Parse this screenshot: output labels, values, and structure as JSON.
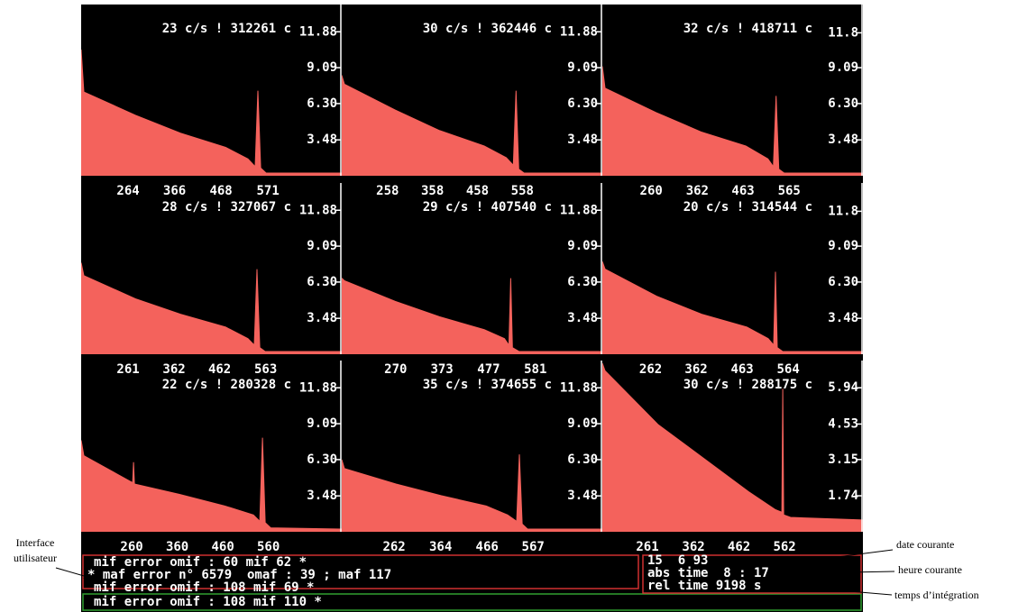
{
  "spectrum_color": "#f4625c",
  "panels": [
    {
      "header": "23 c/s ! 312261 c",
      "xlim": [
        161,
        733
      ],
      "xticks": [
        264,
        366,
        468,
        571
      ],
      "ylim": [
        0.69,
        14
      ],
      "yticks": [
        11.88,
        9.09,
        {
          "value": 6.3,
          "label": "6.30"
        },
        3.48
      ],
      "spectrum": {
        "x": [
          161,
          167,
          280,
          379,
          478,
          527,
          543,
          549,
          555,
          567,
          733
        ],
        "y": [
          10.5,
          7.2,
          5.4,
          4.0,
          2.9,
          2.0,
          1.4,
          7.3,
          1.3,
          0.9,
          0.9
        ]
      }
    },
    {
      "header": "30 c/s ! 362446 c",
      "xlim": [
        156,
        736
      ],
      "xticks": [
        258,
        358,
        458,
        558
      ],
      "ylim": [
        0.69,
        14
      ],
      "yticks": [
        11.88,
        9.09,
        {
          "value": 6.3,
          "label": "6.30"
        },
        3.48
      ],
      "spectrum": {
        "x": [
          156,
          162,
          275,
          374,
          473,
          522,
          538,
          544,
          550,
          562,
          736
        ],
        "y": [
          8.5,
          7.8,
          5.8,
          4.2,
          3.0,
          2.1,
          1.5,
          7.3,
          1.2,
          0.9,
          0.9
        ]
      }
    },
    {
      "header": "32 c/s ! 418711 c",
      "xlim": [
        152,
        728
      ],
      "xticks": [
        260,
        362,
        463,
        565
      ],
      "ylim": [
        0.69,
        14
      ],
      "yticks": [
        11.8,
        9.09,
        {
          "value": 6.3,
          "label": "6.30"
        },
        3.48
      ],
      "spectrum": {
        "x": [
          152,
          158,
          271,
          370,
          469,
          518,
          530,
          536,
          542,
          554,
          728
        ],
        "y": [
          9.2,
          7.5,
          5.6,
          4.1,
          3.0,
          2.0,
          1.4,
          6.9,
          1.2,
          0.9,
          0.9
        ]
      }
    },
    {
      "header": "28 c/s ! 327067 c",
      "xlim": [
        158,
        730
      ],
      "xticks": [
        261,
        362,
        462,
        563
      ],
      "ylim": [
        0.69,
        14
      ],
      "yticks": [
        11.88,
        9.09,
        {
          "value": 6.3,
          "label": "6.30"
        },
        3.48
      ],
      "spectrum": {
        "x": [
          158,
          164,
          277,
          376,
          475,
          524,
          538,
          544,
          550,
          562,
          730
        ],
        "y": [
          7.8,
          6.8,
          5.0,
          3.8,
          2.8,
          1.9,
          1.4,
          7.3,
          1.2,
          0.9,
          0.9
        ]
      }
    },
    {
      "header": "29 c/s ! 407540 c",
      "xlim": [
        150,
        730
      ],
      "xticks": [
        270,
        373,
        477,
        581
      ],
      "ylim": [
        0.69,
        14
      ],
      "yticks": [
        11.88,
        9.09,
        {
          "value": 6.3,
          "label": "6.30"
        },
        3.48
      ],
      "spectrum": {
        "x": [
          150,
          156,
          269,
          368,
          467,
          512,
          522,
          526,
          530,
          545,
          730
        ],
        "y": [
          6.6,
          6.4,
          4.8,
          3.6,
          2.6,
          1.9,
          1.4,
          6.6,
          1.2,
          0.9,
          0.9
        ]
      }
    },
    {
      "header": "20 c/s ! 314544 c",
      "xlim": [
        156,
        728
      ],
      "xticks": [
        262,
        362,
        463,
        564
      ],
      "ylim": [
        0.69,
        14
      ],
      "yticks": [
        11.8,
        9.09,
        {
          "value": 6.3,
          "label": "6.30"
        },
        3.48
      ],
      "spectrum": {
        "x": [
          156,
          162,
          275,
          374,
          473,
          520,
          532,
          536,
          540,
          552,
          728
        ],
        "y": [
          7.9,
          7.3,
          5.2,
          3.8,
          2.8,
          1.9,
          1.4,
          7.1,
          1.2,
          0.9,
          0.9
        ]
      }
    },
    {
      "header": "22 c/s ! 280328 c",
      "xlim": [
        149,
        721
      ],
      "xticks": [
        260,
        360,
        460,
        560
      ],
      "ylim": [
        0.69,
        14
      ],
      "yticks": [
        11.88,
        9.09,
        {
          "value": 6.3,
          "label": "6.30"
        },
        3.48
      ],
      "spectrum": {
        "x": [
          149,
          155,
          262,
          264,
          266,
          365,
          464,
          527,
          541,
          547,
          553,
          565,
          721
        ],
        "y": [
          7.8,
          6.6,
          4.5,
          6.1,
          4.4,
          3.6,
          2.7,
          2.0,
          1.5,
          8.0,
          1.4,
          1.0,
          0.9
        ]
      }
    },
    {
      "header": "35 c/s ! 374655 c",
      "xlim": [
        147,
        719
      ],
      "xticks": [
        262,
        364,
        466,
        567
      ],
      "ylim": [
        0.69,
        14
      ],
      "yticks": [
        11.88,
        9.09,
        {
          "value": 6.3,
          "label": "6.30"
        },
        3.48
      ],
      "spectrum": {
        "x": [
          147,
          153,
          266,
          365,
          464,
          511,
          531,
          537,
          543,
          555,
          719
        ],
        "y": [
          6.3,
          5.6,
          4.4,
          3.5,
          2.7,
          2.0,
          1.5,
          6.7,
          1.3,
          0.9,
          0.9
        ]
      }
    },
    {
      "header": "30 c/s ! 288175 c",
      "xlim": [
        162,
        734
      ],
      "xticks": [
        261,
        362,
        462,
        562
      ],
      "ylim": [
        0.34,
        7
      ],
      "yticks": [
        5.94,
        4.53,
        3.15,
        1.74
      ],
      "spectrum": {
        "x": [
          162,
          168,
          285,
          384,
          483,
          542,
          556,
          558,
          560,
          575,
          734
        ],
        "y": [
          6.9,
          6.6,
          4.5,
          3.2,
          1.9,
          1.2,
          1.1,
          5.9,
          1.0,
          0.9,
          0.8
        ]
      }
    }
  ],
  "messages": [
    "mif error omif : 60 mif 62 *",
    "* maf error n° 6579  omaf : 39 ; maf 117",
    "mif error omif : 108 mif 69 *"
  ],
  "current_message": "mif error omif : 108 mif 110 *",
  "status": {
    "date": "15  6 93",
    "abs_time": "abs time  8 : 17",
    "rel_time": "rel time 9198 s"
  },
  "annotations": {
    "interface": [
      "Interface",
      "utilisateur"
    ],
    "date": "date courante",
    "time": "heure courante",
    "integration": "temps d’intégration"
  }
}
